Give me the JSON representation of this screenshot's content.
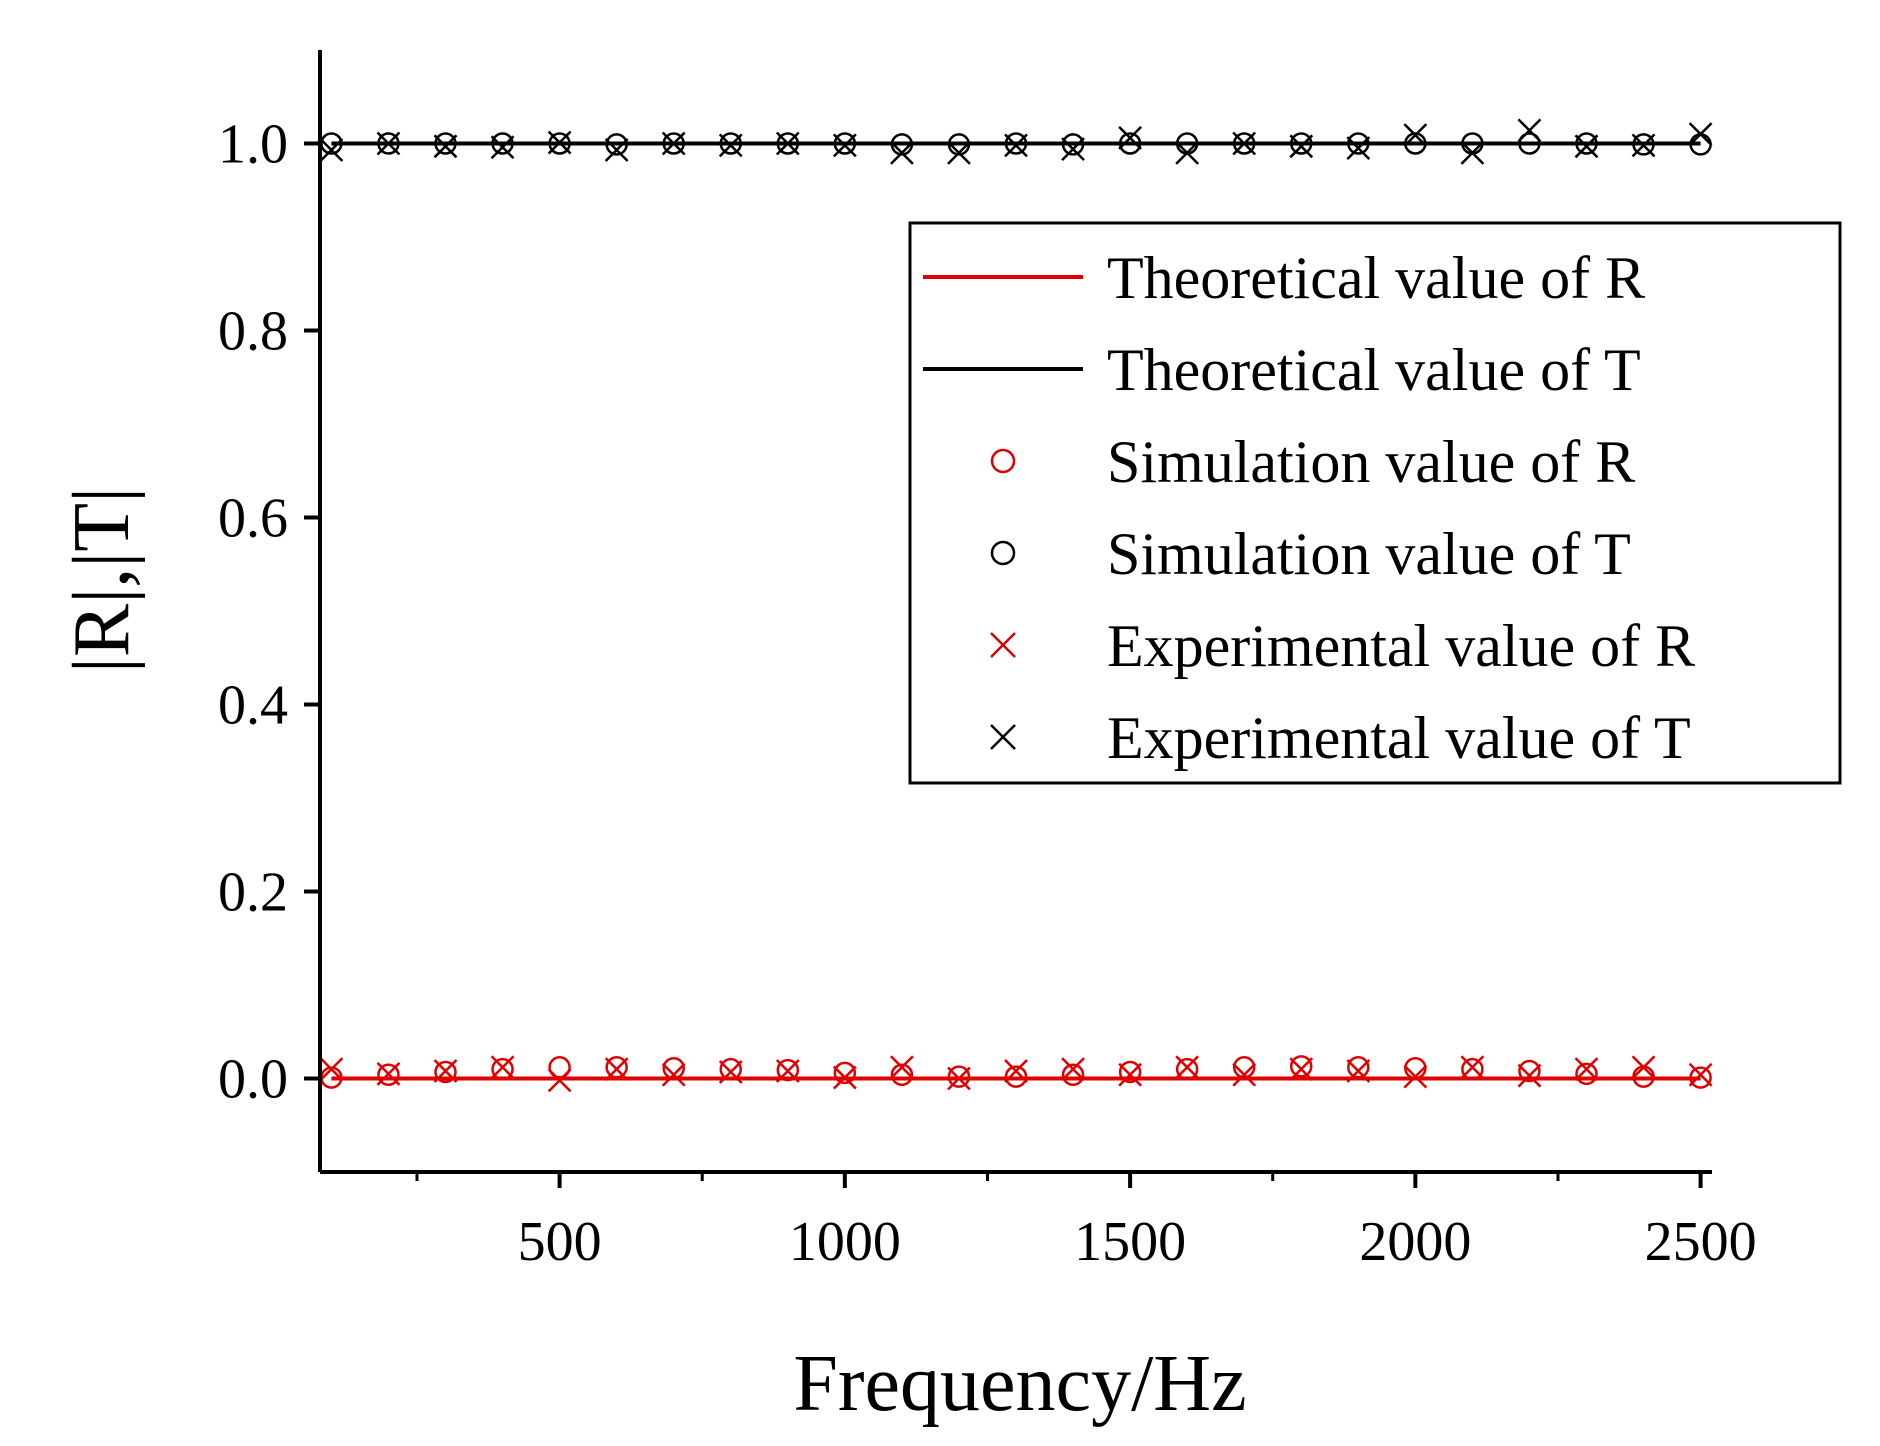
{
  "chart_data": {
    "type": "line",
    "xlabel": "Frequency/Hz",
    "ylabel": "|R|,|T|",
    "xlim": [
      80,
      2520
    ],
    "ylim": [
      -0.1,
      1.1
    ],
    "x_ticks": [
      500,
      1000,
      1500,
      2000,
      2500
    ],
    "x_tick_labels": [
      "500",
      "1000",
      "1500",
      "2000",
      "2500"
    ],
    "y_ticks": [
      0.0,
      0.2,
      0.4,
      0.6,
      0.8,
      1.0
    ],
    "y_tick_labels": [
      "0.0",
      "0.2",
      "0.4",
      "0.6",
      "0.8",
      "1.0"
    ],
    "legend_position": "right",
    "x": [
      100,
      200,
      300,
      400,
      500,
      600,
      700,
      800,
      900,
      1000,
      1100,
      1200,
      1300,
      1400,
      1500,
      1600,
      1700,
      1800,
      1900,
      2000,
      2100,
      2200,
      2300,
      2400,
      2500
    ],
    "series": [
      {
        "name": "Theoretical value of R",
        "kind": "line",
        "color": "#e00000",
        "values": [
          0,
          0,
          0,
          0,
          0,
          0,
          0,
          0,
          0,
          0,
          0,
          0,
          0,
          0,
          0,
          0,
          0,
          0,
          0,
          0,
          0,
          0,
          0,
          0,
          0
        ]
      },
      {
        "name": "Theoretical value of T",
        "kind": "line",
        "color": "#000000",
        "values": [
          1,
          1,
          1,
          1,
          1,
          1,
          1,
          1,
          1,
          1,
          1,
          1,
          1,
          1,
          1,
          1,
          1,
          1,
          1,
          1,
          1,
          1,
          1,
          1,
          1
        ]
      },
      {
        "name": "Simulation value of R",
        "kind": "circle",
        "color": "#e00000",
        "values": [
          0.001,
          0.004,
          0.007,
          0.01,
          0.012,
          0.012,
          0.011,
          0.01,
          0.009,
          0.006,
          0.004,
          0.002,
          0.002,
          0.004,
          0.007,
          0.01,
          0.012,
          0.013,
          0.012,
          0.011,
          0.01,
          0.008,
          0.005,
          0.002,
          0.001
        ]
      },
      {
        "name": "Simulation value of T",
        "kind": "circle",
        "color": "#000000",
        "values": [
          1.0,
          1.0,
          1.0,
          1.0,
          1.0,
          0.999,
          1.0,
          1.0,
          1.0,
          1.0,
          0.999,
          0.999,
          1.0,
          0.999,
          1.0,
          1.0,
          1.0,
          1.0,
          1.0,
          1.0,
          1.0,
          1.0,
          1.0,
          0.999,
          0.999
        ]
      },
      {
        "name": "Experimental value of R",
        "kind": "cross",
        "color": "#e00000",
        "values": [
          0.01,
          0.005,
          0.008,
          0.012,
          -0.002,
          0.01,
          0.004,
          0.007,
          0.008,
          0.001,
          0.012,
          0.0,
          0.008,
          0.01,
          0.004,
          0.012,
          0.004,
          0.01,
          0.008,
          0.002,
          0.012,
          0.003,
          0.01,
          0.012,
          0.004
        ]
      },
      {
        "name": "Experimental value of T",
        "kind": "cross",
        "color": "#000000",
        "values": [
          0.993,
          1.0,
          0.997,
          0.996,
          1.001,
          0.993,
          1.0,
          0.998,
          1.0,
          0.998,
          0.99,
          0.99,
          0.998,
          0.994,
          1.006,
          0.99,
          1.0,
          0.997,
          0.995,
          1.009,
          0.99,
          1.014,
          0.997,
          0.998,
          1.01
        ]
      }
    ]
  }
}
